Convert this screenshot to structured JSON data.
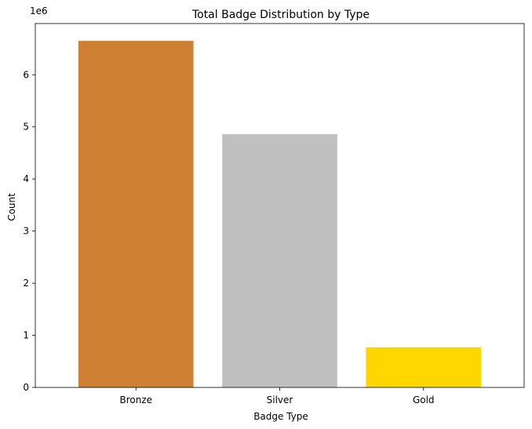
{
  "chart_data": {
    "type": "bar",
    "title": "Total Badge Distribution by Type",
    "xlabel": "Badge Type",
    "ylabel": "Count",
    "y_scale_label": "1e6",
    "categories": [
      "Bronze",
      "Silver",
      "Gold"
    ],
    "values": [
      6650000,
      4860000,
      770000
    ],
    "colors": [
      "#cd7f32",
      "#c0c0c0",
      "#ffd700"
    ],
    "ylim": [
      0,
      6982500
    ],
    "yticks": [
      0,
      1000000,
      2000000,
      3000000,
      4000000,
      5000000,
      6000000
    ],
    "ytick_labels": [
      "0",
      "1",
      "2",
      "3",
      "4",
      "5",
      "6"
    ],
    "grid": false,
    "legend": "none"
  }
}
